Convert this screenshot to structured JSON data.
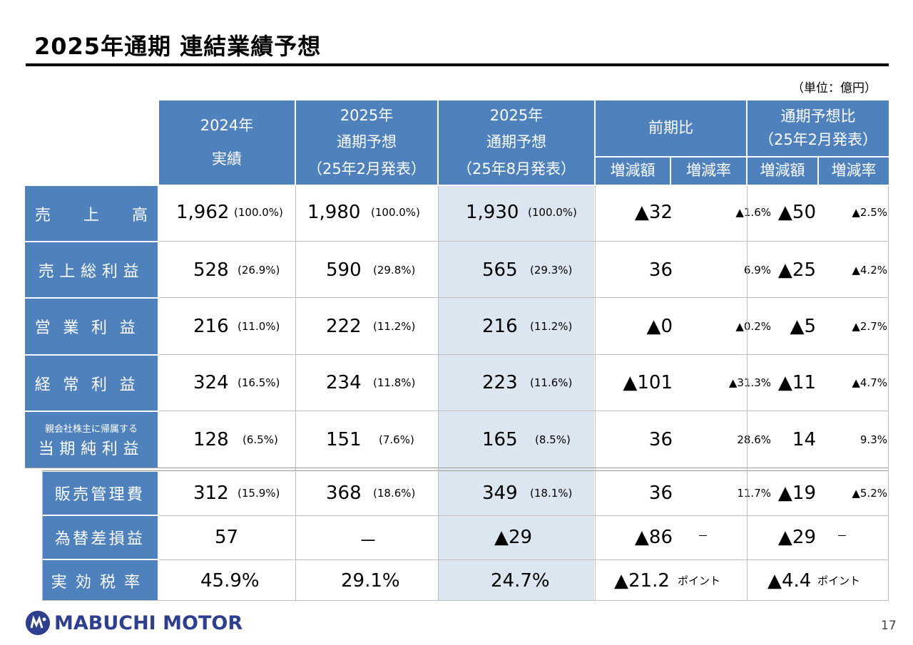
{
  "title": "2025年通期 連結業績予想",
  "unit": "（単位：億円）",
  "headers": {
    "col1": [
      "2024年",
      "実績"
    ],
    "col2": [
      "2025年",
      "通期予想",
      "（25年2月発表）"
    ],
    "col3": [
      "2025年",
      "通期予想",
      "（25年8月発表）"
    ],
    "col4": "前期比",
    "col5": [
      "通期予想比",
      "（25年2月発表）"
    ],
    "sub_amount": "増減額",
    "sub_rate": "増減率"
  },
  "rows": [
    {
      "label": "売上高",
      "c1": "1,962",
      "p1": "(100.0%)",
      "c2": "1,980",
      "p2": "(100.0%)",
      "c3": "1,930",
      "p3": "(100.0%)",
      "d1": "▲32",
      "r1": "▲1.6%",
      "d2": "▲50",
      "r2": "▲2.5%"
    },
    {
      "label": "売上総利益",
      "c1": "528",
      "p1": "(26.9%)",
      "c2": "590",
      "p2": "(29.8%)",
      "c3": "565",
      "p3": "(29.3%)",
      "d1": "36",
      "r1": "6.9%",
      "d2": "▲25",
      "r2": "▲4.2%"
    },
    {
      "label": "営業利益",
      "c1": "216",
      "p1": "(11.0%)",
      "c2": "222",
      "p2": "(11.2%)",
      "c3": "216",
      "p3": "(11.2%)",
      "d1": "▲0",
      "r1": "▲0.2%",
      "d2": "▲5",
      "r2": "▲2.7%"
    },
    {
      "label": "経常利益",
      "c1": "324",
      "p1": "(16.5%)",
      "c2": "234",
      "p2": "(11.8%)",
      "c3": "223",
      "p3": "(11.6%)",
      "d1": "▲101",
      "r1": "▲31.3%",
      "d2": "▲11",
      "r2": "▲4.7%"
    },
    {
      "label_small": "親会社株主に帰属する",
      "label": "当期純利益",
      "c1": "128",
      "p1": "(6.5%)",
      "c2": "151",
      "p2": "(7.6%)",
      "c3": "165",
      "p3": "(8.5%)",
      "d1": "36",
      "r1": "28.6%",
      "d2": "14",
      "r2": "9.3%"
    }
  ],
  "rows2": [
    {
      "label": "販売管理費",
      "c1": "312",
      "p1": "(15.9%)",
      "c2": "368",
      "p2": "(18.6%)",
      "c3": "349",
      "p3": "(18.1%)",
      "d1": "36",
      "r1": "11.7%",
      "d2": "▲19",
      "r2": "▲5.2%"
    },
    {
      "label": "為替差損益",
      "c1": "57",
      "c2": "－",
      "c3": "▲29",
      "d1": "▲86",
      "r1": "－",
      "d2": "▲29",
      "r2": "－"
    },
    {
      "label": "実効税率",
      "c1": "45.9%",
      "c2": "29.1%",
      "c3": "24.7%",
      "d1": "▲21.2",
      "d1_suffix": "ポイント",
      "d2": "▲4.4",
      "d2_suffix": "ポイント"
    }
  ],
  "footer": {
    "logo_text": "MABUCHI MOTOR",
    "page_number": "17"
  },
  "colors": {
    "header_blue": "#4f81bd",
    "highlight": "#dce6f1",
    "logo": "#2e3f8f"
  }
}
